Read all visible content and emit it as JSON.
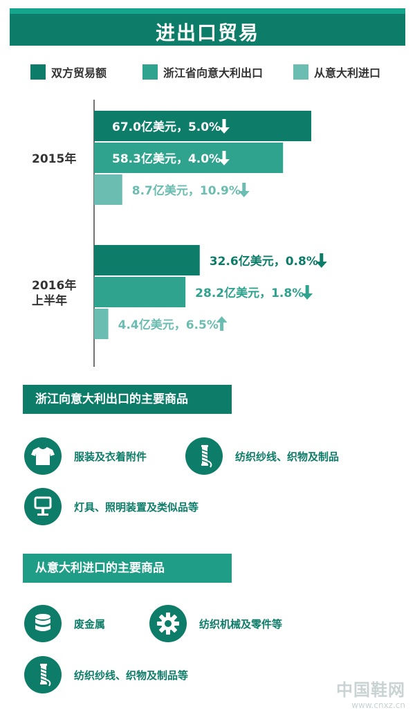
{
  "title": "进出口贸易",
  "colors": {
    "dark": "#0d7c69",
    "mid": "#2fa38e",
    "light": "#6cbdb1",
    "section2": "#1f9d86"
  },
  "legend": [
    {
      "label": "双方贸易额",
      "color": "#0d7c69"
    },
    {
      "label": "浙江省向意大利出口",
      "color": "#2fa38e"
    },
    {
      "label": "从意大利进口",
      "color": "#6cbdb1"
    }
  ],
  "chart_data": {
    "type": "bar",
    "orientation": "horizontal",
    "categories": [
      "2015年",
      "2016年\n上半年"
    ],
    "series": [
      {
        "name": "双方贸易额",
        "values": [
          67.0,
          32.6
        ],
        "labels": [
          "67.0亿美元，5.0%",
          "32.6亿美元，0.8%"
        ],
        "trend": [
          "down",
          "down"
        ]
      },
      {
        "name": "浙江省向意大利出口",
        "values": [
          58.3,
          28.2
        ],
        "labels": [
          "58.3亿美元，4.0%",
          "28.2亿美元，1.8%"
        ],
        "trend": [
          "down",
          "down"
        ]
      },
      {
        "name": "从意大利进口",
        "values": [
          8.7,
          4.4
        ],
        "labels": [
          "8.7亿美元，10.9%",
          "4.4亿美元，6.5%"
        ],
        "trend": [
          "down",
          "up"
        ]
      }
    ]
  },
  "exports_section": {
    "title": "浙江向意大利出口的主要商品",
    "items": [
      {
        "label": "服装及衣着附件",
        "icon": "tshirt-icon"
      },
      {
        "label": "纺织纱线、织物及制品",
        "icon": "thread-spool-icon"
      },
      {
        "label": "灯具、照明装置及类似品等",
        "icon": "lamp-icon"
      }
    ]
  },
  "imports_section": {
    "title": "从意大利进口的主要商品",
    "items": [
      {
        "label": "废金属",
        "icon": "metal-stack-icon"
      },
      {
        "label": "纺织机械及零件等",
        "icon": "gear-icon"
      },
      {
        "label": "纺织纱线、织物及制品等",
        "icon": "thread-spool-icon"
      }
    ]
  },
  "watermark": {
    "main": "中国鞋网",
    "sub": "www.cnxz.cn"
  }
}
